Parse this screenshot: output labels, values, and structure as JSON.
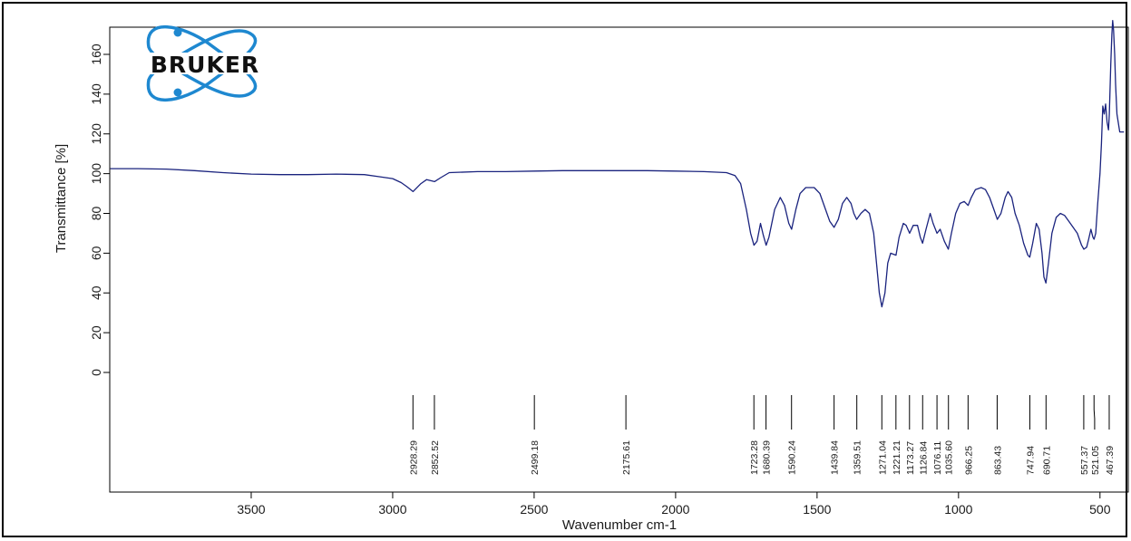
{
  "colors": {
    "spectrum": "#1a237e",
    "frame": "#000000",
    "logo_accent": "#1e88d0"
  },
  "logo": {
    "text": "BRUKER",
    "icon": "bruker-atom-icon"
  },
  "chart_data": {
    "type": "line",
    "title": "",
    "xlabel": "Wavenumber cm-1",
    "ylabel": "Transmittance [%]",
    "x_reversed": true,
    "xlim": [
      4000,
      400
    ],
    "ylim": [
      -10,
      180
    ],
    "x_ticks": [
      3500,
      3000,
      2500,
      2000,
      1500,
      1000,
      500
    ],
    "y_ticks": [
      0,
      20,
      40,
      60,
      80,
      100,
      120,
      140,
      160
    ],
    "grid": false,
    "series": [
      {
        "points": [
          [
            3998,
            102.5
          ],
          [
            3900,
            102.5
          ],
          [
            3800,
            102.3
          ],
          [
            3700,
            101.5
          ],
          [
            3600,
            100.5
          ],
          [
            3500,
            99.8
          ],
          [
            3400,
            99.5
          ],
          [
            3300,
            99.5
          ],
          [
            3200,
            99.8
          ],
          [
            3100,
            99.5
          ],
          [
            3050,
            98.5
          ],
          [
            3000,
            97.5
          ],
          [
            2970,
            95.5
          ],
          [
            2950,
            93.5
          ],
          [
            2928,
            91
          ],
          [
            2900,
            95
          ],
          [
            2880,
            97
          ],
          [
            2852,
            96
          ],
          [
            2830,
            98
          ],
          [
            2800,
            100.5
          ],
          [
            2700,
            101
          ],
          [
            2600,
            101
          ],
          [
            2500,
            101.3
          ],
          [
            2400,
            101.5
          ],
          [
            2300,
            101.5
          ],
          [
            2200,
            101.5
          ],
          [
            2100,
            101.5
          ],
          [
            2000,
            101.3
          ],
          [
            1900,
            101
          ],
          [
            1820,
            100.5
          ],
          [
            1790,
            99
          ],
          [
            1770,
            95
          ],
          [
            1750,
            82
          ],
          [
            1735,
            70
          ],
          [
            1723,
            64
          ],
          [
            1712,
            66
          ],
          [
            1700,
            75
          ],
          [
            1690,
            69
          ],
          [
            1680,
            64
          ],
          [
            1670,
            68
          ],
          [
            1650,
            82
          ],
          [
            1630,
            88
          ],
          [
            1615,
            84
          ],
          [
            1600,
            75
          ],
          [
            1590,
            72
          ],
          [
            1575,
            82
          ],
          [
            1560,
            90
          ],
          [
            1540,
            93
          ],
          [
            1510,
            93
          ],
          [
            1490,
            90
          ],
          [
            1470,
            82
          ],
          [
            1455,
            76
          ],
          [
            1440,
            73
          ],
          [
            1425,
            77
          ],
          [
            1410,
            85
          ],
          [
            1395,
            88
          ],
          [
            1380,
            85
          ],
          [
            1370,
            80
          ],
          [
            1360,
            77
          ],
          [
            1345,
            80
          ],
          [
            1330,
            82
          ],
          [
            1315,
            80
          ],
          [
            1300,
            70
          ],
          [
            1290,
            55
          ],
          [
            1280,
            40
          ],
          [
            1271,
            33
          ],
          [
            1260,
            40
          ],
          [
            1250,
            55
          ],
          [
            1240,
            60
          ],
          [
            1221,
            59
          ],
          [
            1210,
            68
          ],
          [
            1195,
            75
          ],
          [
            1185,
            74
          ],
          [
            1173,
            70
          ],
          [
            1160,
            74
          ],
          [
            1145,
            74
          ],
          [
            1135,
            68
          ],
          [
            1127,
            65
          ],
          [
            1115,
            72
          ],
          [
            1100,
            80
          ],
          [
            1090,
            75
          ],
          [
            1076,
            70
          ],
          [
            1065,
            72
          ],
          [
            1050,
            66
          ],
          [
            1036,
            62
          ],
          [
            1025,
            70
          ],
          [
            1010,
            80
          ],
          [
            995,
            85
          ],
          [
            980,
            86
          ],
          [
            966,
            84
          ],
          [
            955,
            88
          ],
          [
            940,
            92
          ],
          [
            920,
            93
          ],
          [
            905,
            92
          ],
          [
            890,
            88
          ],
          [
            875,
            82
          ],
          [
            863,
            77
          ],
          [
            850,
            80
          ],
          [
            835,
            88
          ],
          [
            825,
            91
          ],
          [
            812,
            88
          ],
          [
            800,
            80
          ],
          [
            785,
            74
          ],
          [
            770,
            65
          ],
          [
            755,
            59
          ],
          [
            748,
            58
          ],
          [
            738,
            65
          ],
          [
            725,
            75
          ],
          [
            715,
            72
          ],
          [
            705,
            60
          ],
          [
            698,
            48
          ],
          [
            691,
            45
          ],
          [
            682,
            55
          ],
          [
            670,
            70
          ],
          [
            655,
            78
          ],
          [
            640,
            80
          ],
          [
            625,
            79
          ],
          [
            610,
            76
          ],
          [
            595,
            73
          ],
          [
            580,
            70
          ],
          [
            565,
            64
          ],
          [
            557,
            62
          ],
          [
            547,
            63
          ],
          [
            540,
            67
          ],
          [
            532,
            72
          ],
          [
            525,
            68
          ],
          [
            521,
            67
          ],
          [
            515,
            70
          ],
          [
            508,
            85
          ],
          [
            500,
            100
          ],
          [
            495,
            115
          ],
          [
            490,
            134
          ],
          [
            485,
            130
          ],
          [
            480,
            135
          ],
          [
            475,
            126
          ],
          [
            470,
            122
          ],
          [
            467,
            130
          ],
          [
            462,
            155
          ],
          [
            458,
            170
          ],
          [
            455,
            177
          ],
          [
            452,
            172
          ],
          [
            448,
            160
          ],
          [
            445,
            145
          ],
          [
            440,
            130
          ],
          [
            430,
            121
          ],
          [
            415,
            121
          ]
        ]
      }
    ],
    "peaks": [
      "2928.29",
      "2852.52",
      "2499.18",
      "2175.61",
      "1723.28",
      "1680.39",
      "1590.24",
      "1439.84",
      "1359.51",
      "1271.04",
      "1221.21",
      "1173.27",
      "1126.84",
      "1076.11",
      "1035.60",
      "966.25",
      "863.43",
      "747.94",
      "690.71",
      "557.37",
      "521.05",
      "467.39"
    ]
  }
}
